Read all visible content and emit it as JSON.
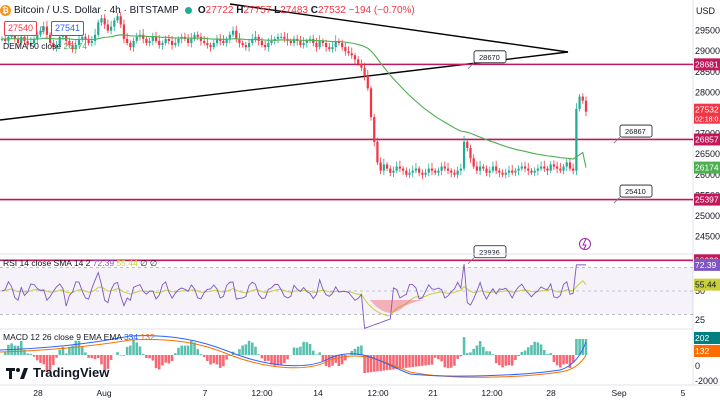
{
  "header": {
    "symbol": "Bitcoin / U.S. Dollar · 4h · BITSTAMP",
    "coin_glyph": "₿",
    "open_label": "O",
    "open": "27722",
    "high_label": "H",
    "high": "27757",
    "low_label": "L",
    "low": "27483",
    "close_label": "C",
    "close": "27532",
    "change": "−194 (−0.70%)"
  },
  "price_boxes": {
    "sell": "27540",
    "spread": "1",
    "buy": "27541"
  },
  "ema_legend": {
    "label": "DEMA 50 close",
    "value": "26174"
  },
  "rsi_legend": {
    "label": "RSI 14 close SMA 14 2",
    "v1": "72.39",
    "v2": "55.44",
    "v3": "∅",
    "v4": "∅"
  },
  "macd_legend": {
    "label": "MACD 12 26 close 9 EMA EMA",
    "v1": "334",
    "v2": "132"
  },
  "currency": "USD",
  "brand": "TradingView",
  "colors": {
    "up": "#22ab94",
    "down": "#f23645",
    "hline": "#c2185b",
    "ema": "#4caf50",
    "rsi": "#7e57c2",
    "rsi_ma": "#c9d03b",
    "macd": "#2962ff",
    "signal": "#ff6d00",
    "trend": "#000000"
  },
  "chart_data": [
    {
      "type": "candlestick",
      "title": "Bitcoin / U.S. Dollar · 4h · BITSTAMP",
      "y_axis_unit": "USD",
      "y_ticks": [
        24500,
        25000,
        25500,
        26000,
        26500,
        27000,
        27500,
        28000,
        28500,
        29000,
        29500
      ],
      "ylim": [
        24100,
        30050
      ],
      "x_ticks": [
        "28",
        "Aug",
        "7",
        "12:00",
        "14",
        "12:00",
        "21",
        "12:00",
        "28",
        "Sep",
        "5"
      ],
      "series_close": [
        29300,
        29250,
        29350,
        29400,
        29300,
        29200,
        29350,
        29250,
        29150,
        29200,
        29300,
        29400,
        29500,
        29600,
        29400,
        29200,
        29100,
        29150,
        29350,
        29500,
        29250,
        29150,
        29050,
        29150,
        29300,
        29350,
        29300,
        29200,
        29250,
        29400,
        29700,
        29800,
        29650,
        29500,
        29600,
        29750,
        29850,
        29650,
        29300,
        29200,
        29100,
        29250,
        29350,
        29400,
        29300,
        29200,
        29250,
        29350,
        29250,
        29150,
        29200,
        29300,
        29250,
        29150,
        29200,
        29300,
        29350,
        29300,
        29200,
        29300,
        29400,
        29350,
        29250,
        29200,
        29150,
        29100,
        29200,
        29300,
        29250,
        29200,
        29300,
        29400,
        29500,
        29300,
        29200,
        29150,
        29100,
        29200,
        29300,
        29350,
        29250,
        29150,
        29100,
        29200,
        29250,
        29300,
        29350,
        29350,
        29300,
        29250,
        29200,
        29300,
        29250,
        29150,
        29200,
        29250,
        29300,
        29200,
        29100,
        29250,
        29200,
        29100,
        29050,
        29100,
        29250,
        29200,
        29100,
        29000,
        28950,
        28900,
        28800,
        28700,
        28600,
        28400,
        28100,
        27400,
        26800,
        26300,
        26100,
        26250,
        26150,
        26050,
        26100,
        26200,
        26150,
        26100,
        26000,
        26050,
        26100,
        26150,
        26050,
        26000,
        26050,
        26150,
        26100,
        26050,
        26100,
        26200,
        26150,
        26100,
        26050,
        26000,
        26100,
        26150,
        26800,
        26650,
        26400,
        26200,
        26100,
        26200,
        26150,
        26050,
        26100,
        26200,
        26100,
        26050,
        26000,
        26050,
        26100,
        26050,
        26100,
        26150,
        26200,
        26150,
        26100,
        26050,
        26100,
        26150,
        26200,
        26150,
        26100,
        26250,
        26200,
        26150,
        26100,
        26200,
        26300,
        26150,
        26100,
        27600,
        27900,
        27800,
        27532
      ],
      "annotations": [
        {
          "kind": "horizontal",
          "price": 28681,
          "label": "28681"
        },
        {
          "kind": "horizontal",
          "price": 26857,
          "label": "26857"
        },
        {
          "kind": "horizontal",
          "price": 25397,
          "label": "25397"
        },
        {
          "kind": "horizontal",
          "price": 23923,
          "label": "23923"
        },
        {
          "kind": "callout",
          "price": 28670,
          "label": "28670"
        },
        {
          "kind": "callout",
          "price": 26867,
          "label": "26867"
        },
        {
          "kind": "callout",
          "price": 25410,
          "label": "25410"
        },
        {
          "kind": "callout",
          "price": 23936,
          "label": "23936"
        }
      ],
      "axis_badges": [
        {
          "label": "27532",
          "sub": "02:18:0…",
          "color": "#f23645"
        },
        {
          "label": "26174",
          "color": "#4caf50"
        }
      ],
      "ema_value": 26174
    },
    {
      "type": "line",
      "title": "RSI 14 close SMA 14 2",
      "y_ticks": [
        75,
        50,
        25
      ],
      "ylim": [
        20,
        80
      ],
      "overbought": 70,
      "oversold": 30,
      "rsi": 72.39,
      "rsi_ma": 55.44
    },
    {
      "type": "bar",
      "title": "MACD 12 26 close 9 EMA EMA",
      "y_ticks": [
        202,
        132,
        0,
        -2000
      ],
      "macd": 334,
      "signal": 132
    }
  ]
}
